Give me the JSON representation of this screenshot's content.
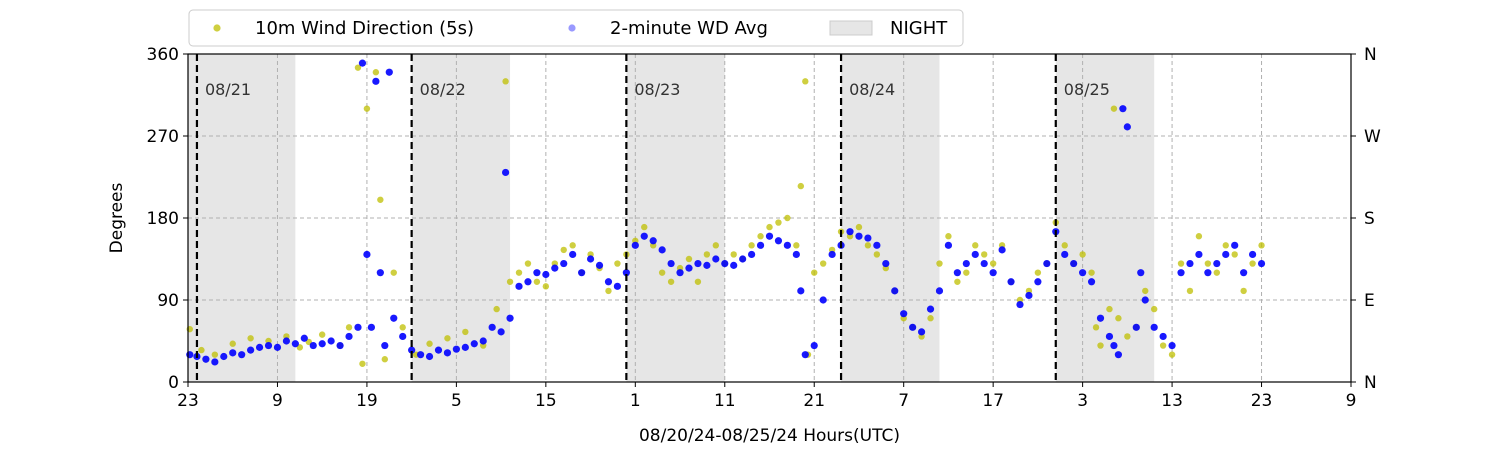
{
  "chart_data": {
    "type": "scatter",
    "title": "",
    "xlabel": "08/20/24-08/25/24  Hours(UTC)",
    "ylabel": "Degrees",
    "x_tick_labels": [
      "23",
      "9",
      "19",
      "5",
      "15",
      "1",
      "11",
      "21",
      "7",
      "17",
      "3",
      "13",
      "23",
      "9"
    ],
    "x_tick_hours": [
      0,
      10,
      20,
      30,
      40,
      50,
      60,
      70,
      80,
      90,
      100,
      110,
      120,
      130
    ],
    "xlim_hours": [
      0,
      130
    ],
    "y_ticks": [
      0,
      90,
      180,
      270,
      360
    ],
    "ylim": [
      0,
      360
    ],
    "right_axis_labels": [
      "N",
      "E",
      "S",
      "W",
      "N"
    ],
    "grid": true,
    "legend_position": "top",
    "legend": [
      {
        "label": "10m Wind Direction (5s)",
        "kind": "marker",
        "color": "#bfbf00"
      },
      {
        "label": "2-minute WD Avg",
        "kind": "marker",
        "color": "#0000ff"
      },
      {
        "label": "NIGHT",
        "kind": "patch",
        "color": "#e6e6e6"
      }
    ],
    "day_markers": [
      {
        "label": "08/21",
        "hour": 1
      },
      {
        "label": "08/22",
        "hour": 25
      },
      {
        "label": "08/23",
        "hour": 49
      },
      {
        "label": "08/24",
        "hour": 73
      },
      {
        "label": "08/25",
        "hour": 97
      }
    ],
    "night_spans_hours": [
      [
        0,
        12
      ],
      [
        25,
        36
      ],
      [
        49,
        60
      ],
      [
        73,
        84
      ],
      [
        97,
        108
      ]
    ],
    "series": [
      {
        "name": "10m Wind Direction (5s)",
        "color": "#bfbf00",
        "points": [
          [
            0.2,
            58
          ],
          [
            1.5,
            35
          ],
          [
            3,
            30
          ],
          [
            5,
            42
          ],
          [
            7,
            48
          ],
          [
            9,
            45
          ],
          [
            11,
            50
          ],
          [
            12.5,
            38
          ],
          [
            13.5,
            44
          ],
          [
            15,
            52
          ],
          [
            17,
            40
          ],
          [
            18,
            60
          ],
          [
            19,
            345
          ],
          [
            19.5,
            20
          ],
          [
            20,
            300
          ],
          [
            21,
            340
          ],
          [
            21.5,
            200
          ],
          [
            22,
            25
          ],
          [
            23,
            120
          ],
          [
            24,
            60
          ],
          [
            25.5,
            30
          ],
          [
            27,
            42
          ],
          [
            29,
            48
          ],
          [
            31,
            55
          ],
          [
            33,
            40
          ],
          [
            34.5,
            80
          ],
          [
            35.5,
            330
          ],
          [
            36,
            110
          ],
          [
            37,
            120
          ],
          [
            38,
            130
          ],
          [
            39,
            110
          ],
          [
            40,
            105
          ],
          [
            41,
            130
          ],
          [
            42,
            145
          ],
          [
            43,
            150
          ],
          [
            44,
            120
          ],
          [
            45,
            140
          ],
          [
            46,
            125
          ],
          [
            47,
            100
          ],
          [
            48,
            130
          ],
          [
            49,
            140
          ],
          [
            50,
            155
          ],
          [
            51,
            170
          ],
          [
            52,
            150
          ],
          [
            53,
            120
          ],
          [
            54,
            110
          ],
          [
            55,
            125
          ],
          [
            56,
            135
          ],
          [
            57,
            110
          ],
          [
            58,
            140
          ],
          [
            59,
            150
          ],
          [
            60,
            130
          ],
          [
            61,
            140
          ],
          [
            62,
            135
          ],
          [
            63,
            150
          ],
          [
            64,
            160
          ],
          [
            65,
            170
          ],
          [
            66,
            175
          ],
          [
            67,
            180
          ],
          [
            68,
            150
          ],
          [
            68.5,
            215
          ],
          [
            69,
            330
          ],
          [
            69.3,
            30
          ],
          [
            70,
            120
          ],
          [
            71,
            130
          ],
          [
            72,
            145
          ],
          [
            73,
            165
          ],
          [
            74,
            160
          ],
          [
            75,
            170
          ],
          [
            76,
            150
          ],
          [
            77,
            140
          ],
          [
            78,
            125
          ],
          [
            79,
            100
          ],
          [
            80,
            70
          ],
          [
            81,
            60
          ],
          [
            82,
            50
          ],
          [
            83,
            70
          ],
          [
            84,
            130
          ],
          [
            85,
            160
          ],
          [
            86,
            110
          ],
          [
            87,
            120
          ],
          [
            88,
            150
          ],
          [
            89,
            140
          ],
          [
            90,
            130
          ],
          [
            91,
            150
          ],
          [
            92,
            110
          ],
          [
            93,
            90
          ],
          [
            94,
            100
          ],
          [
            95,
            120
          ],
          [
            96,
            130
          ],
          [
            97,
            175
          ],
          [
            98,
            150
          ],
          [
            99,
            130
          ],
          [
            100,
            140
          ],
          [
            101,
            120
          ],
          [
            101.5,
            60
          ],
          [
            102,
            40
          ],
          [
            103,
            80
          ],
          [
            103.5,
            300
          ],
          [
            104,
            70
          ],
          [
            105,
            50
          ],
          [
            106,
            60
          ],
          [
            107,
            100
          ],
          [
            108,
            80
          ],
          [
            109,
            40
          ],
          [
            110,
            30
          ],
          [
            111,
            130
          ],
          [
            112,
            100
          ],
          [
            113,
            160
          ],
          [
            114,
            130
          ],
          [
            115,
            120
          ],
          [
            116,
            150
          ],
          [
            117,
            140
          ],
          [
            118,
            100
          ],
          [
            119,
            130
          ],
          [
            120,
            150
          ]
        ]
      },
      {
        "name": "2-minute WD Avg",
        "color": "#0000ff",
        "points": [
          [
            0.2,
            30
          ],
          [
            1,
            28
          ],
          [
            2,
            25
          ],
          [
            3,
            22
          ],
          [
            4,
            28
          ],
          [
            5,
            32
          ],
          [
            6,
            30
          ],
          [
            7,
            35
          ],
          [
            8,
            38
          ],
          [
            9,
            40
          ],
          [
            10,
            38
          ],
          [
            11,
            45
          ],
          [
            12,
            42
          ],
          [
            13,
            48
          ],
          [
            14,
            40
          ],
          [
            15,
            42
          ],
          [
            16,
            45
          ],
          [
            17,
            40
          ],
          [
            18,
            50
          ],
          [
            19,
            60
          ],
          [
            19.5,
            350
          ],
          [
            20,
            140
          ],
          [
            20.5,
            60
          ],
          [
            21,
            330
          ],
          [
            21.5,
            120
          ],
          [
            22,
            40
          ],
          [
            22.5,
            340
          ],
          [
            23,
            70
          ],
          [
            24,
            50
          ],
          [
            25,
            35
          ],
          [
            26,
            30
          ],
          [
            27,
            28
          ],
          [
            28,
            35
          ],
          [
            29,
            32
          ],
          [
            30,
            36
          ],
          [
            31,
            38
          ],
          [
            32,
            42
          ],
          [
            33,
            45
          ],
          [
            34,
            60
          ],
          [
            35,
            55
          ],
          [
            35.5,
            230
          ],
          [
            36,
            70
          ],
          [
            37,
            105
          ],
          [
            38,
            110
          ],
          [
            39,
            120
          ],
          [
            40,
            118
          ],
          [
            41,
            125
          ],
          [
            42,
            130
          ],
          [
            43,
            140
          ],
          [
            44,
            120
          ],
          [
            45,
            135
          ],
          [
            46,
            128
          ],
          [
            47,
            110
          ],
          [
            48,
            105
          ],
          [
            49,
            120
          ],
          [
            50,
            150
          ],
          [
            51,
            160
          ],
          [
            52,
            155
          ],
          [
            53,
            145
          ],
          [
            54,
            130
          ],
          [
            55,
            120
          ],
          [
            56,
            125
          ],
          [
            57,
            130
          ],
          [
            58,
            128
          ],
          [
            59,
            135
          ],
          [
            60,
            130
          ],
          [
            61,
            128
          ],
          [
            62,
            135
          ],
          [
            63,
            140
          ],
          [
            64,
            150
          ],
          [
            65,
            160
          ],
          [
            66,
            155
          ],
          [
            67,
            150
          ],
          [
            68,
            140
          ],
          [
            68.5,
            100
          ],
          [
            69,
            30
          ],
          [
            70,
            40
          ],
          [
            71,
            90
          ],
          [
            72,
            140
          ],
          [
            73,
            150
          ],
          [
            74,
            165
          ],
          [
            75,
            160
          ],
          [
            76,
            158
          ],
          [
            77,
            150
          ],
          [
            78,
            130
          ],
          [
            79,
            100
          ],
          [
            80,
            75
          ],
          [
            81,
            60
          ],
          [
            82,
            55
          ],
          [
            83,
            80
          ],
          [
            84,
            100
          ],
          [
            85,
            150
          ],
          [
            86,
            120
          ],
          [
            87,
            130
          ],
          [
            88,
            140
          ],
          [
            89,
            130
          ],
          [
            90,
            120
          ],
          [
            91,
            145
          ],
          [
            92,
            110
          ],
          [
            93,
            85
          ],
          [
            94,
            95
          ],
          [
            95,
            110
          ],
          [
            96,
            130
          ],
          [
            97,
            165
          ],
          [
            98,
            140
          ],
          [
            99,
            130
          ],
          [
            100,
            120
          ],
          [
            101,
            110
          ],
          [
            102,
            70
          ],
          [
            103,
            50
          ],
          [
            103.5,
            40
          ],
          [
            104,
            30
          ],
          [
            104.5,
            300
          ],
          [
            105,
            280
          ],
          [
            106,
            60
          ],
          [
            106.5,
            120
          ],
          [
            107,
            90
          ],
          [
            108,
            60
          ],
          [
            109,
            50
          ],
          [
            110,
            40
          ],
          [
            111,
            120
          ],
          [
            112,
            130
          ],
          [
            113,
            140
          ],
          [
            114,
            120
          ],
          [
            115,
            130
          ],
          [
            116,
            140
          ],
          [
            117,
            150
          ],
          [
            118,
            120
          ],
          [
            119,
            140
          ],
          [
            120,
            130
          ]
        ]
      }
    ]
  }
}
